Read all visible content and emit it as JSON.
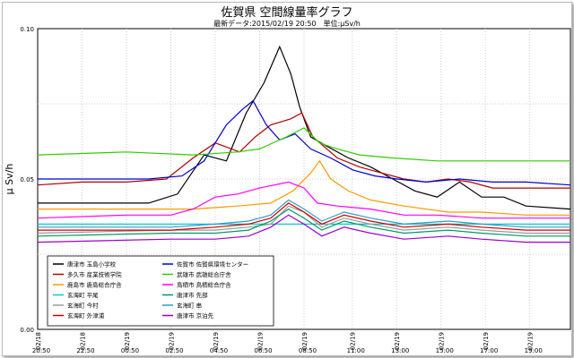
{
  "chart_data": {
    "type": "line",
    "title": "佐賀県 空間線量率グラフ",
    "subtitle": "最新データ:2015/02/19 20:50　単位:μSv/h",
    "ylabel": "μ Sv/h",
    "xlabel": "",
    "ylim": [
      0,
      0.1
    ],
    "yticks": [
      "0.00",
      "0.05",
      "0.10"
    ],
    "grid": true,
    "legend_position": "bottom-left",
    "x_tick_labels": [
      {
        "date": "02/18",
        "time": "20:50"
      },
      {
        "date": "02/18",
        "time": "22:50"
      },
      {
        "date": "02/19",
        "time": "00:50"
      },
      {
        "date": "02/19",
        "time": "02:50"
      },
      {
        "date": "02/19",
        "time": "04:50"
      },
      {
        "date": "02/19",
        "time": "06:50"
      },
      {
        "date": "02/19",
        "time": "08:50"
      },
      {
        "date": "02/19",
        "time": "11:00"
      },
      {
        "date": "02/19",
        "time": "13:00"
      },
      {
        "date": "02/19",
        "time": "15:00"
      },
      {
        "date": "02/19",
        "time": "17:00"
      },
      {
        "date": "02/19",
        "time": "19:00"
      }
    ],
    "x_hours": [
      0,
      2,
      4,
      6,
      8,
      10,
      12,
      14.17,
      16.17,
      18.17,
      20.17,
      22.17
    ],
    "x_range_hours": [
      0,
      24
    ],
    "series": [
      {
        "name": "唐津市 玉島小学校",
        "color": "#000000",
        "points": [
          [
            0,
            0.042
          ],
          [
            3,
            0.042
          ],
          [
            5,
            0.042
          ],
          [
            6.3,
            0.045
          ],
          [
            7.5,
            0.058
          ],
          [
            8.5,
            0.056
          ],
          [
            9.4,
            0.072
          ],
          [
            10.2,
            0.082
          ],
          [
            10.9,
            0.094
          ],
          [
            11.4,
            0.085
          ],
          [
            11.8,
            0.074
          ],
          [
            12.3,
            0.064
          ],
          [
            13,
            0.061
          ],
          [
            14,
            0.057
          ],
          [
            15,
            0.054
          ],
          [
            16,
            0.05
          ],
          [
            17,
            0.046
          ],
          [
            18,
            0.044
          ],
          [
            19,
            0.049
          ],
          [
            20,
            0.044
          ],
          [
            21,
            0.044
          ],
          [
            22,
            0.041
          ],
          [
            24,
            0.04
          ]
        ]
      },
      {
        "name": "多久市 産業技術学院",
        "color": "#b00000",
        "points": [
          [
            0,
            0.048
          ],
          [
            2,
            0.049
          ],
          [
            4,
            0.049
          ],
          [
            5.8,
            0.05
          ],
          [
            7,
            0.057
          ],
          [
            8,
            0.062
          ],
          [
            9.1,
            0.059
          ],
          [
            9.8,
            0.064
          ],
          [
            10.5,
            0.068
          ],
          [
            11.4,
            0.07
          ],
          [
            11.9,
            0.072
          ],
          [
            12.4,
            0.064
          ],
          [
            13.5,
            0.057
          ],
          [
            14.5,
            0.054
          ],
          [
            15.5,
            0.052
          ],
          [
            16.5,
            0.05
          ],
          [
            17.5,
            0.049
          ],
          [
            18.5,
            0.05
          ],
          [
            19.5,
            0.049
          ],
          [
            20.5,
            0.047
          ],
          [
            22,
            0.047
          ],
          [
            24,
            0.047
          ]
        ]
      },
      {
        "name": "鹿島市 鹿島総合庁舎",
        "color": "#ff9900",
        "points": [
          [
            0,
            0.04
          ],
          [
            3,
            0.04
          ],
          [
            5,
            0.04
          ],
          [
            7,
            0.04
          ],
          [
            9,
            0.041
          ],
          [
            10.5,
            0.042
          ],
          [
            11.5,
            0.046
          ],
          [
            12.3,
            0.052
          ],
          [
            12.7,
            0.056
          ],
          [
            13.2,
            0.05
          ],
          [
            14,
            0.046
          ],
          [
            15,
            0.043
          ],
          [
            16.5,
            0.041
          ],
          [
            18.5,
            0.039
          ],
          [
            20,
            0.039
          ],
          [
            22,
            0.038
          ],
          [
            24,
            0.038
          ]
        ]
      },
      {
        "name": "玄海町 平尾",
        "color": "#00cccc",
        "points": [
          [
            0,
            0.035
          ],
          [
            24,
            0.035
          ]
        ]
      },
      {
        "name": "玄海町 今村",
        "color": "#999999",
        "points": [
          [
            0,
            0.032
          ],
          [
            6,
            0.033
          ],
          [
            8,
            0.033
          ],
          [
            9.5,
            0.034
          ],
          [
            10.5,
            0.035
          ],
          [
            11.3,
            0.041
          ],
          [
            12,
            0.039
          ],
          [
            12.8,
            0.034
          ],
          [
            13.8,
            0.037
          ],
          [
            15,
            0.035
          ],
          [
            16.5,
            0.033
          ],
          [
            18.5,
            0.034
          ],
          [
            20,
            0.033
          ],
          [
            22,
            0.032
          ],
          [
            24,
            0.032
          ]
        ]
      },
      {
        "name": "玄海町 外津浦",
        "color": "#cc0000",
        "points": [
          [
            0,
            0.033
          ],
          [
            6,
            0.033
          ],
          [
            8,
            0.034
          ],
          [
            9.5,
            0.035
          ],
          [
            10.5,
            0.037
          ],
          [
            11.3,
            0.042
          ],
          [
            12,
            0.039
          ],
          [
            12.8,
            0.035
          ],
          [
            13.8,
            0.038
          ],
          [
            15,
            0.036
          ],
          [
            16.5,
            0.034
          ],
          [
            18.5,
            0.035
          ],
          [
            20,
            0.034
          ],
          [
            22,
            0.033
          ],
          [
            24,
            0.033
          ]
        ]
      },
      {
        "name": "佐賀市 佐賀県環境センター",
        "color": "#0000cc",
        "points": [
          [
            0,
            0.05
          ],
          [
            3,
            0.05
          ],
          [
            5,
            0.05
          ],
          [
            6.5,
            0.051
          ],
          [
            7.5,
            0.056
          ],
          [
            8.5,
            0.068
          ],
          [
            9.2,
            0.073
          ],
          [
            9.7,
            0.076
          ],
          [
            10.3,
            0.068
          ],
          [
            10.9,
            0.063
          ],
          [
            11.6,
            0.065
          ],
          [
            12.3,
            0.06
          ],
          [
            13.2,
            0.057
          ],
          [
            14.2,
            0.053
          ],
          [
            15.2,
            0.051
          ],
          [
            16.2,
            0.05
          ],
          [
            17.5,
            0.049
          ],
          [
            19,
            0.05
          ],
          [
            20.5,
            0.049
          ],
          [
            22,
            0.049
          ],
          [
            24,
            0.048
          ]
        ]
      },
      {
        "name": "武雄市 武雄総合庁舎",
        "color": "#33cc00",
        "points": [
          [
            0,
            0.058
          ],
          [
            4,
            0.059
          ],
          [
            7,
            0.058
          ],
          [
            9,
            0.059
          ],
          [
            10,
            0.06
          ],
          [
            11.2,
            0.064
          ],
          [
            12,
            0.067
          ],
          [
            12.7,
            0.062
          ],
          [
            13.5,
            0.06
          ],
          [
            14.5,
            0.058
          ],
          [
            16,
            0.057
          ],
          [
            18,
            0.056
          ],
          [
            20,
            0.056
          ],
          [
            22,
            0.056
          ],
          [
            24,
            0.056
          ]
        ]
      },
      {
        "name": "鳥栖市 鳥栖総合庁舎",
        "color": "#ff00ff",
        "points": [
          [
            0,
            0.037
          ],
          [
            4,
            0.038
          ],
          [
            6,
            0.038
          ],
          [
            7,
            0.04
          ],
          [
            8,
            0.044
          ],
          [
            9,
            0.045
          ],
          [
            10,
            0.047
          ],
          [
            11.3,
            0.049
          ],
          [
            12,
            0.047
          ],
          [
            12.6,
            0.042
          ],
          [
            13.5,
            0.041
          ],
          [
            15,
            0.04
          ],
          [
            16.5,
            0.038
          ],
          [
            18,
            0.038
          ],
          [
            20,
            0.037
          ],
          [
            22,
            0.037
          ],
          [
            24,
            0.037
          ]
        ]
      },
      {
        "name": "唐津市 先部",
        "color": "#009966",
        "points": [
          [
            0,
            0.031
          ],
          [
            6,
            0.032
          ],
          [
            8,
            0.032
          ],
          [
            9.5,
            0.033
          ],
          [
            10.5,
            0.036
          ],
          [
            11.3,
            0.04
          ],
          [
            12,
            0.037
          ],
          [
            12.8,
            0.033
          ],
          [
            13.8,
            0.036
          ],
          [
            15,
            0.034
          ],
          [
            16.5,
            0.032
          ],
          [
            18.5,
            0.033
          ],
          [
            20,
            0.032
          ],
          [
            22,
            0.031
          ],
          [
            24,
            0.031
          ]
        ]
      },
      {
        "name": "玄海町 串",
        "color": "#3399cc",
        "points": [
          [
            0,
            0.034
          ],
          [
            6,
            0.034
          ],
          [
            8,
            0.035
          ],
          [
            9.5,
            0.036
          ],
          [
            10.5,
            0.038
          ],
          [
            11.3,
            0.043
          ],
          [
            12,
            0.04
          ],
          [
            12.8,
            0.036
          ],
          [
            13.8,
            0.039
          ],
          [
            15,
            0.037
          ],
          [
            16.5,
            0.035
          ],
          [
            18.5,
            0.036
          ],
          [
            20,
            0.035
          ],
          [
            22,
            0.034
          ],
          [
            24,
            0.034
          ]
        ]
      },
      {
        "name": "唐津市 京泊先",
        "color": "#9900cc",
        "points": [
          [
            0,
            0.029
          ],
          [
            6,
            0.03
          ],
          [
            8,
            0.03
          ],
          [
            9.5,
            0.031
          ],
          [
            10.5,
            0.034
          ],
          [
            11.3,
            0.038
          ],
          [
            12,
            0.035
          ],
          [
            12.8,
            0.031
          ],
          [
            13.8,
            0.034
          ],
          [
            15,
            0.032
          ],
          [
            16.5,
            0.03
          ],
          [
            18.5,
            0.031
          ],
          [
            20,
            0.03
          ],
          [
            22,
            0.029
          ],
          [
            24,
            0.029
          ]
        ]
      }
    ]
  }
}
